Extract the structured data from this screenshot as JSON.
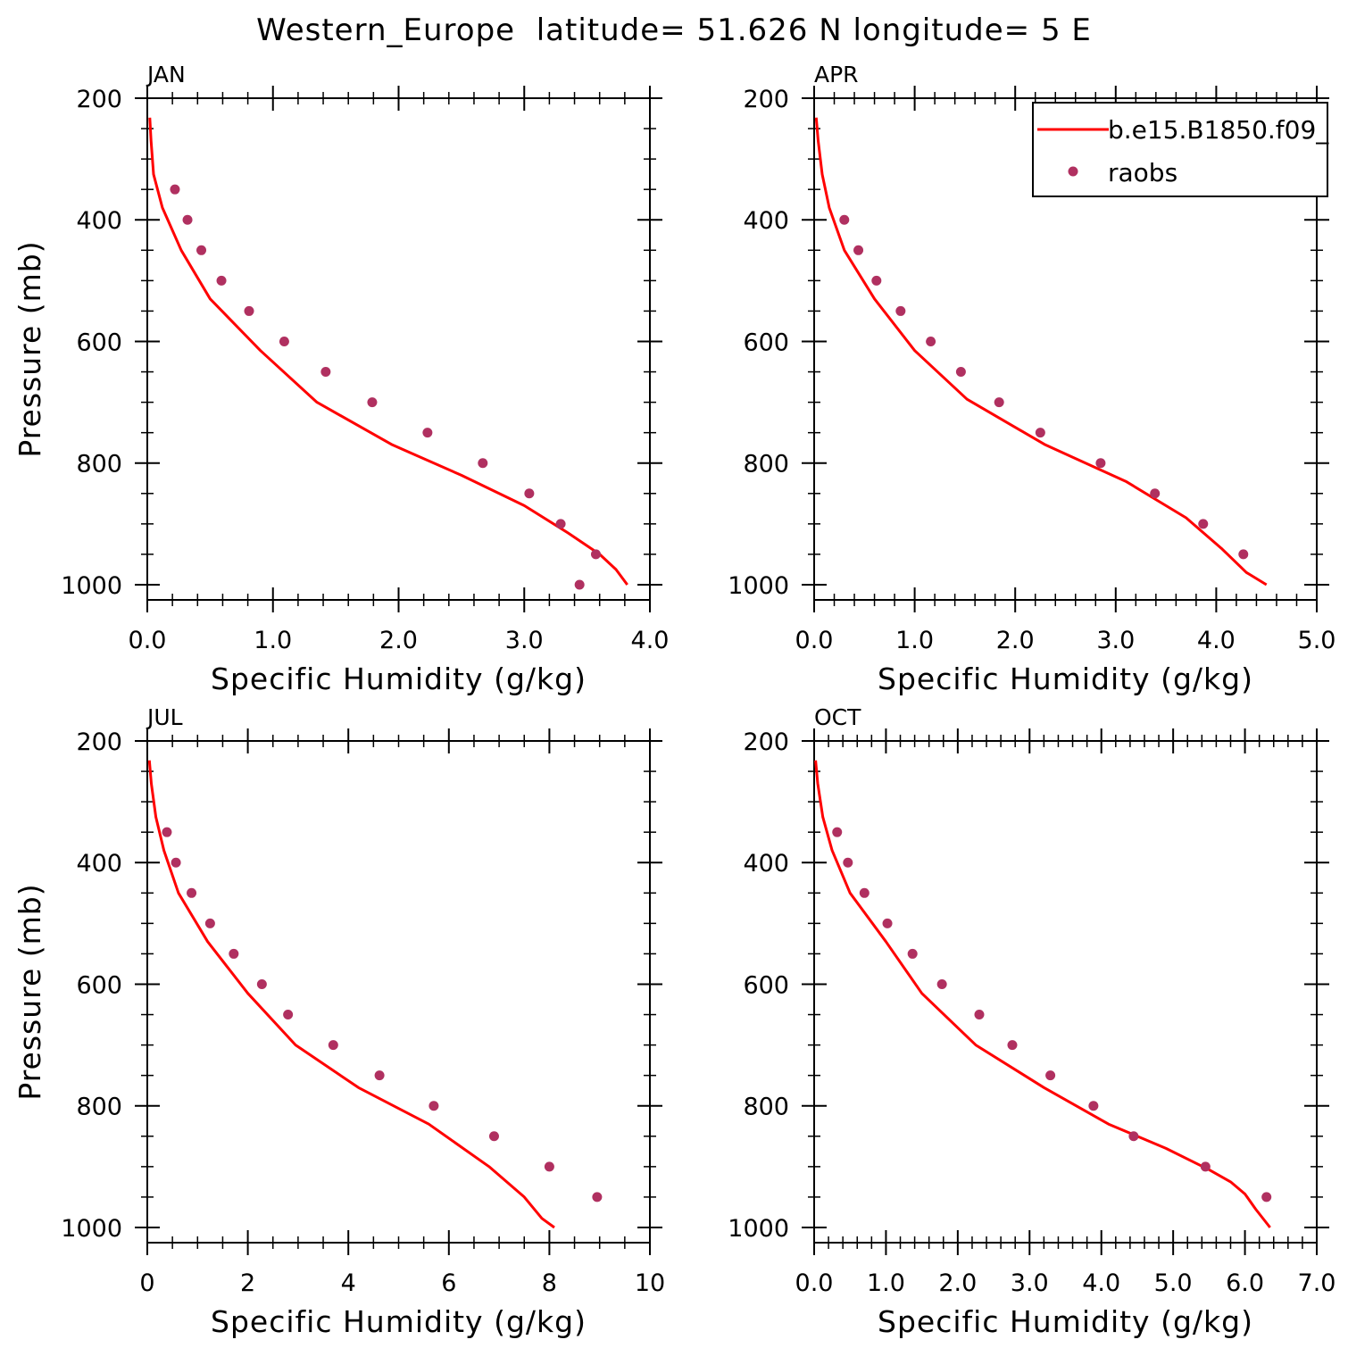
{
  "title": "Western_Europe  latitude= 51.626 N longitude= 5 E",
  "legend": {
    "model_label": "b.e15.B1850.f09_",
    "obs_label": "raobs"
  },
  "colors": {
    "model_line": "#ff0000",
    "obs_marker": "#b03060",
    "axes": "#000000"
  },
  "chart_data": [
    {
      "type": "scatter",
      "panel_label": "JAN",
      "xlabel": "Specific Humidity (g/kg)",
      "ylabel": "Pressure (mb)",
      "xlim": [
        0.0,
        4.0
      ],
      "ylim": [
        1025,
        200
      ],
      "xticks": [
        "0.0",
        "1.0",
        "2.0",
        "3.0",
        "4.0"
      ],
      "xtick_values": [
        0,
        1,
        2,
        3,
        4
      ],
      "x_minor_step": 0.2,
      "yticks": [
        200,
        400,
        600,
        800,
        1000
      ],
      "y_minor_step": 50,
      "series": [
        {
          "name": "b.e15.B1850.f09_",
          "kind": "line",
          "x": [
            0.02,
            0.03,
            0.05,
            0.12,
            0.27,
            0.5,
            0.9,
            1.35,
            1.95,
            2.5,
            3.0,
            3.35,
            3.6,
            3.73,
            3.82
          ],
          "y": [
            232,
            270,
            325,
            380,
            450,
            530,
            615,
            700,
            770,
            820,
            870,
            915,
            950,
            975,
            1000
          ]
        },
        {
          "name": "raobs",
          "kind": "points",
          "x": [
            0.22,
            0.32,
            0.43,
            0.59,
            0.81,
            1.09,
            1.42,
            1.79,
            2.23,
            2.67,
            3.04,
            3.29,
            3.57,
            3.44
          ],
          "y": [
            350,
            400,
            450,
            500,
            550,
            600,
            650,
            700,
            750,
            800,
            850,
            900,
            950,
            1000
          ]
        }
      ]
    },
    {
      "type": "scatter",
      "panel_label": "APR",
      "xlabel": "Specific Humidity (g/kg)",
      "ylabel": "",
      "xlim": [
        0.0,
        5.0
      ],
      "ylim": [
        1025,
        200
      ],
      "xticks": [
        "0.0",
        "1.0",
        "2.0",
        "3.0",
        "4.0",
        "5.0"
      ],
      "xtick_values": [
        0,
        1,
        2,
        3,
        4,
        5
      ],
      "x_minor_step": 0.2,
      "yticks": [
        200,
        400,
        600,
        800,
        1000
      ],
      "y_minor_step": 50,
      "show_legend": true,
      "series": [
        {
          "name": "b.e15.B1850.f09_",
          "kind": "line",
          "x": [
            0.02,
            0.04,
            0.08,
            0.15,
            0.3,
            0.6,
            1.0,
            1.52,
            2.3,
            3.1,
            3.7,
            4.05,
            4.3,
            4.5
          ],
          "y": [
            232,
            270,
            325,
            380,
            450,
            530,
            615,
            695,
            770,
            830,
            890,
            940,
            980,
            1000
          ]
        },
        {
          "name": "raobs",
          "kind": "points",
          "x": [
            0.3,
            0.44,
            0.62,
            0.86,
            1.16,
            1.46,
            1.84,
            2.25,
            2.85,
            3.39,
            3.87,
            4.27
          ],
          "y": [
            400,
            450,
            500,
            550,
            600,
            650,
            700,
            750,
            800,
            850,
            900,
            950
          ]
        }
      ]
    },
    {
      "type": "scatter",
      "panel_label": "JUL",
      "xlabel": "Specific Humidity (g/kg)",
      "ylabel": "Pressure (mb)",
      "xlim": [
        0,
        10
      ],
      "ylim": [
        1025,
        200
      ],
      "xticks": [
        "0",
        "2",
        "4",
        "6",
        "8",
        "10"
      ],
      "xtick_values": [
        0,
        2,
        4,
        6,
        8,
        10
      ],
      "x_minor_step": 0.5,
      "yticks": [
        200,
        400,
        600,
        800,
        1000
      ],
      "y_minor_step": 50,
      "series": [
        {
          "name": "b.e15.B1850.f09_",
          "kind": "line",
          "x": [
            0.04,
            0.08,
            0.17,
            0.33,
            0.62,
            1.2,
            2.0,
            2.95,
            4.2,
            5.6,
            6.8,
            7.5,
            7.85,
            8.1
          ],
          "y": [
            232,
            270,
            325,
            380,
            450,
            530,
            615,
            700,
            770,
            830,
            900,
            950,
            985,
            1000
          ]
        },
        {
          "name": "raobs",
          "kind": "points",
          "x": [
            0.39,
            0.57,
            0.88,
            1.25,
            1.72,
            2.28,
            2.8,
            3.7,
            4.62,
            5.7,
            6.9,
            8.0,
            8.95
          ],
          "y": [
            350,
            400,
            450,
            500,
            550,
            600,
            650,
            700,
            750,
            800,
            850,
            900,
            950
          ]
        }
      ]
    },
    {
      "type": "scatter",
      "panel_label": "OCT",
      "xlabel": "Specific Humidity (g/kg)",
      "ylabel": "",
      "xlim": [
        0.0,
        7.0
      ],
      "ylim": [
        1025,
        200
      ],
      "xticks": [
        "0.0",
        "1.0",
        "2.0",
        "3.0",
        "4.0",
        "5.0",
        "6.0",
        "7.0"
      ],
      "xtick_values": [
        0,
        1,
        2,
        3,
        4,
        5,
        6,
        7
      ],
      "x_minor_step": 0.2,
      "yticks": [
        200,
        400,
        600,
        800,
        1000
      ],
      "y_minor_step": 50,
      "series": [
        {
          "name": "b.e15.B1850.f09_",
          "kind": "line",
          "x": [
            0.02,
            0.05,
            0.12,
            0.25,
            0.5,
            1.0,
            1.5,
            2.25,
            3.2,
            4.1,
            4.9,
            5.5,
            5.8,
            6.0,
            6.15,
            6.35
          ],
          "y": [
            232,
            270,
            325,
            380,
            450,
            530,
            615,
            700,
            770,
            830,
            870,
            905,
            925,
            945,
            970,
            1000
          ]
        },
        {
          "name": "raobs",
          "kind": "points",
          "x": [
            0.32,
            0.47,
            0.7,
            1.02,
            1.37,
            1.78,
            2.3,
            2.76,
            3.29,
            3.89,
            4.45,
            5.45,
            6.3
          ],
          "y": [
            350,
            400,
            450,
            500,
            550,
            600,
            650,
            700,
            750,
            800,
            850,
            900,
            950
          ]
        }
      ]
    }
  ]
}
